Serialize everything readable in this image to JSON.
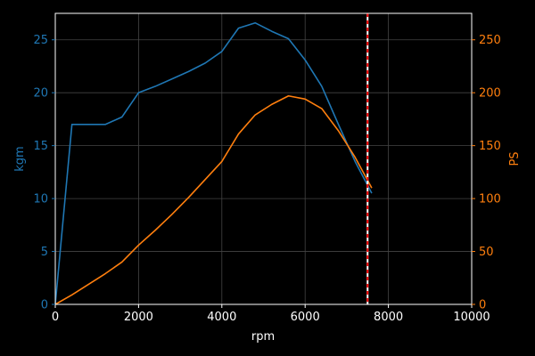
{
  "chart_data": {
    "type": "line",
    "title": "",
    "xlabel": "rpm",
    "ylabel_left": "kgm",
    "ylabel_right": "PS",
    "xlim": [
      0,
      10000
    ],
    "ylim_left": [
      0,
      27.5
    ],
    "ylim_right": [
      0,
      275
    ],
    "x_ticks": [
      0,
      2000,
      4000,
      6000,
      8000,
      10000
    ],
    "y_left_ticks": [
      0,
      5,
      10,
      15,
      20,
      25
    ],
    "y_right_ticks": [
      0,
      50,
      100,
      150,
      200,
      250
    ],
    "grid": true,
    "vline": {
      "x": 7500,
      "colors": [
        "#ffffff",
        "#ff0000"
      ],
      "style": "dashed"
    },
    "colors": {
      "background": "#000000",
      "foreground": "#ffffff",
      "left_axis": "#1f77b4",
      "right_axis": "#ff7f0e",
      "grid": "#444444"
    },
    "series": [
      {
        "axis": "left",
        "color": "#1f77b4",
        "x": [
          0,
          400,
          800,
          1200,
          1600,
          2000,
          2400,
          2800,
          3200,
          3600,
          4000,
          4400,
          4800,
          5200,
          5600,
          6000,
          6400,
          6800,
          7200,
          7600
        ],
        "y": [
          0,
          17.0,
          17.0,
          17.0,
          17.7,
          20.0,
          20.6,
          21.3,
          22.0,
          22.8,
          23.9,
          26.1,
          26.6,
          25.8,
          25.1,
          23.1,
          20.6,
          17.0,
          13.5,
          10.5
        ]
      },
      {
        "axis": "right",
        "color": "#ff7f0e",
        "x": [
          0,
          400,
          800,
          1200,
          1600,
          2000,
          2400,
          2800,
          3200,
          3600,
          4000,
          4400,
          4800,
          5200,
          5600,
          6000,
          6400,
          6800,
          7200,
          7600
        ],
        "y": [
          0,
          9,
          19,
          29,
          40,
          56,
          70,
          85,
          101,
          118,
          135,
          161,
          179,
          189,
          197,
          194,
          185,
          164,
          139,
          110
        ]
      }
    ]
  }
}
